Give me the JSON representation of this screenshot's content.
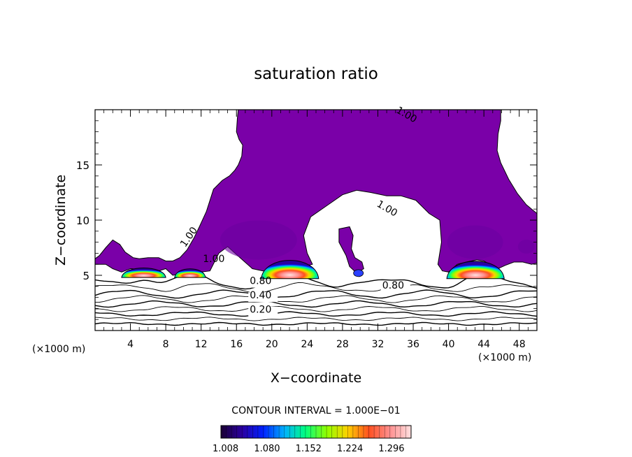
{
  "chart_data": {
    "type": "heatmap",
    "title": "saturation ratio",
    "xlabel": "X−coordinate",
    "ylabel": "Z−coordinate",
    "x_unit_left": "(×1000 m)",
    "x_unit_right": "(×1000 m)",
    "xlim": [
      0,
      50
    ],
    "ylim": [
      0,
      20
    ],
    "x_ticks": [
      4,
      8,
      12,
      16,
      20,
      24,
      28,
      32,
      36,
      40,
      44,
      48
    ],
    "y_ticks": [
      5,
      10,
      15
    ],
    "contour_interval_text": "CONTOUR INTERVAL = 1.000E−01",
    "colorbar": {
      "min": 1.0,
      "max": 1.33,
      "tick_values": [
        1.008,
        1.08,
        1.152,
        1.224,
        1.296
      ],
      "tick_labels": [
        "1.008",
        "1.080",
        "1.152",
        "1.224",
        "1.296"
      ]
    },
    "contour_labels": [
      {
        "text": "1.00",
        "x": 34,
        "z": 19.8
      },
      {
        "text": "1.00",
        "x": 31.8,
        "z": 11.3
      },
      {
        "text": "1.00",
        "x": 10.2,
        "z": 7.5
      },
      {
        "text": "1.00",
        "x": 12.2,
        "z": 6.2
      },
      {
        "text": "0.80",
        "x": 17.5,
        "z": 4.2
      },
      {
        "text": "0.80",
        "x": 32.5,
        "z": 3.8
      },
      {
        "text": "0.40",
        "x": 17.5,
        "z": 2.9
      },
      {
        "text": "0.20",
        "x": 17.5,
        "z": 1.6
      }
    ],
    "supersaturated_cores": [
      {
        "x_range": [
          3,
          8
        ],
        "z_range": [
          4.8,
          5.9
        ],
        "peak": 1.3
      },
      {
        "x_range": [
          9,
          12.5
        ],
        "z_range": [
          4.8,
          5.8
        ],
        "peak": 1.27
      },
      {
        "x_range": [
          18.8,
          25.3
        ],
        "z_range": [
          4.7,
          6.8
        ],
        "peak": 1.33
      },
      {
        "x_range": [
          39.8,
          46.3
        ],
        "z_range": [
          4.7,
          6.7
        ],
        "peak": 1.33
      }
    ],
    "background_contour_levels": [
      0.1,
      0.2,
      0.3,
      0.4,
      0.5,
      0.6,
      0.7,
      0.8,
      0.9
    ],
    "colors": {
      "supersaturated_fill": "#7a00a8",
      "colormap": [
        "#1a0033",
        "#2a00a0",
        "#0020ff",
        "#00b0ff",
        "#00ff80",
        "#90ff00",
        "#ffd000",
        "#ff5020",
        "#ff9090",
        "#ffe0e0"
      ]
    }
  }
}
